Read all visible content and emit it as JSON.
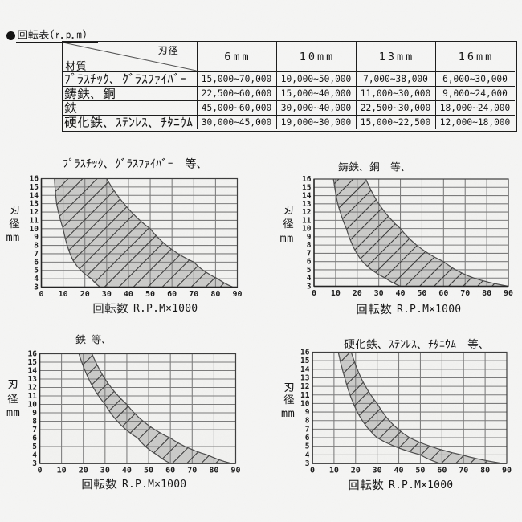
{
  "page": {
    "title": "●回転表(r.p.m)",
    "background": "#f6f6f5"
  },
  "table": {
    "header": {
      "corner_top_right": "刃径",
      "corner_bottom_left": "材質",
      "columns": [
        "6mm",
        "10mm",
        "13mm",
        "16mm"
      ]
    },
    "rows": [
      {
        "material": "プラスチック、グラスファイバー",
        "values": [
          "15,000〜70,000",
          "10,000〜50,000",
          "7,000〜38,000",
          "6,000〜30,000"
        ]
      },
      {
        "material": "鋳鉄、銅",
        "values": [
          "22,500〜60,000",
          "15,000〜40,000",
          "11,000〜30,000",
          "9,000〜24,000"
        ]
      },
      {
        "material": "鉄",
        "values": [
          "45,000〜60,000",
          "30,000〜40,000",
          "22,500〜30,000",
          "18,000〜24,000"
        ]
      },
      {
        "material": "硬化鉄、ステンレス、チタニウム",
        "values": [
          "30,000〜45,000",
          "19,000〜30,000",
          "15,000〜22,500",
          "12,000〜18,000"
        ]
      }
    ]
  },
  "labels": {
    "xlabel_cjk": "回転数",
    "xlabel_latin": "R.P.M×1000",
    "ylabel_cjk": "刃径",
    "ylabel_latin": "mm"
  },
  "chart_data": [
    {
      "type": "area",
      "title": "プラスチック、グラスファイバー 等、",
      "xlabel": "回転数 R.P.M×1000",
      "ylabel": "刃径 mm",
      "xlim": [
        0,
        90
      ],
      "ylim": [
        3,
        16
      ],
      "xticks": [
        0,
        10,
        20,
        30,
        40,
        50,
        60,
        70,
        80,
        90
      ],
      "yticks": [
        3,
        4,
        5,
        6,
        7,
        8,
        9,
        10,
        11,
        12,
        13,
        14,
        15,
        16
      ],
      "grid": true,
      "band_unit": "rpm_x1000",
      "band": {
        "diameters_mm": [
          16,
          13,
          10,
          6,
          4,
          3
        ],
        "rpm_min": [
          6,
          7,
          10,
          15,
          23,
          27
        ],
        "rpm_max": [
          30,
          38,
          50,
          70,
          81,
          88
        ]
      }
    },
    {
      "type": "area",
      "title": "鋳鉄、銅 等、",
      "xlabel": "回転数 R.P.M×1000",
      "ylabel": "刃径 mm",
      "xlim": [
        0,
        90
      ],
      "ylim": [
        3,
        16
      ],
      "xticks": [
        0,
        10,
        20,
        30,
        40,
        50,
        60,
        70,
        80,
        90
      ],
      "yticks": [
        3,
        4,
        5,
        6,
        7,
        8,
        9,
        10,
        11,
        12,
        13,
        14,
        15,
        16
      ],
      "grid": true,
      "band_unit": "rpm_x1000",
      "band": {
        "diameters_mm": [
          16,
          13,
          10,
          6,
          4,
          3
        ],
        "rpm_min": [
          9,
          11,
          15,
          22.5,
          33,
          40
        ],
        "rpm_max": [
          24,
          30,
          40,
          60,
          74,
          90
        ]
      }
    },
    {
      "type": "area",
      "title": "鉄 等、",
      "xlabel": "回転数 R.P.M×1000",
      "ylabel": "刃径 mm",
      "xlim": [
        0,
        90
      ],
      "ylim": [
        3,
        16
      ],
      "xticks": [
        0,
        10,
        20,
        30,
        40,
        50,
        60,
        70,
        80,
        90
      ],
      "yticks": [
        3,
        4,
        5,
        6,
        7,
        8,
        9,
        10,
        11,
        12,
        13,
        14,
        15,
        16
      ],
      "grid": true,
      "band_unit": "rpm_x1000",
      "band": {
        "diameters_mm": [
          16,
          13,
          10,
          6,
          4,
          3
        ],
        "rpm_min": [
          18,
          22.5,
          30,
          45,
          54,
          60
        ],
        "rpm_max": [
          24,
          30,
          40,
          60,
          77,
          88
        ]
      }
    },
    {
      "type": "area",
      "title": "硬化鉄、ステンレス、チタニウム 等、",
      "xlabel": "回転数 R.P.M×1000",
      "ylabel": "刃径 mm",
      "xlim": [
        0,
        90
      ],
      "ylim": [
        3,
        16
      ],
      "xticks": [
        0,
        10,
        20,
        30,
        40,
        50,
        60,
        70,
        80,
        90
      ],
      "yticks": [
        3,
        4,
        5,
        6,
        7,
        8,
        9,
        10,
        11,
        12,
        13,
        14,
        15,
        16
      ],
      "grid": true,
      "band_unit": "rpm_x1000",
      "band": {
        "diameters_mm": [
          16,
          13,
          10,
          6,
          4,
          3
        ],
        "rpm_min": [
          12,
          15,
          19,
          30,
          50,
          59
        ],
        "rpm_max": [
          18,
          22.5,
          30,
          45,
          69,
          88
        ]
      }
    }
  ],
  "colors": {
    "band_fill": "#cbcbc9",
    "hatch": "#3a3a3a",
    "grid": "#7b7b7b",
    "frame": "#3c3c3c",
    "axis": "#222222",
    "text": "#161616",
    "table_border": "#1c1c1c"
  }
}
